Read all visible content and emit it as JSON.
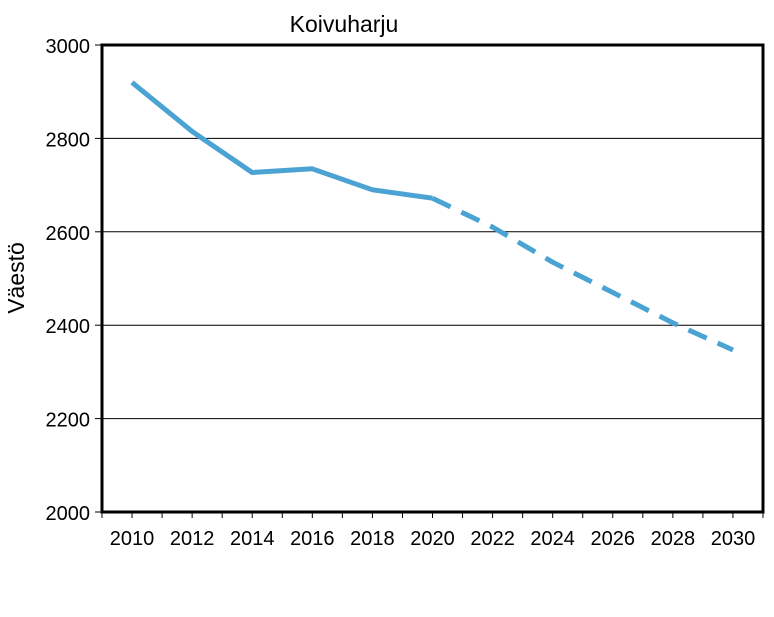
{
  "chart_data": {
    "type": "line",
    "title": "Koivuharju",
    "xlabel": "",
    "ylabel": "Väestö",
    "xlim": [
      2009,
      2031
    ],
    "ylim": [
      2000,
      3000
    ],
    "x_ticks": [
      2010,
      2012,
      2014,
      2016,
      2018,
      2020,
      2022,
      2024,
      2026,
      2028,
      2030
    ],
    "y_ticks": [
      2000,
      2200,
      2400,
      2600,
      2800,
      3000
    ],
    "grid": true,
    "legend": "none",
    "series": [
      {
        "style": "solid",
        "color": "#4BA3D3",
        "points": [
          {
            "x": 2010,
            "y": 2920
          },
          {
            "x": 2012,
            "y": 2815
          },
          {
            "x": 2014,
            "y": 2727
          },
          {
            "x": 2016,
            "y": 2735
          },
          {
            "x": 2018,
            "y": 2690
          },
          {
            "x": 2020,
            "y": 2672
          }
        ]
      },
      {
        "style": "dashed",
        "color": "#4BA3D3",
        "points": [
          {
            "x": 2020,
            "y": 2672
          },
          {
            "x": 2022,
            "y": 2610
          },
          {
            "x": 2024,
            "y": 2535
          },
          {
            "x": 2026,
            "y": 2470
          },
          {
            "x": 2028,
            "y": 2405
          },
          {
            "x": 2030,
            "y": 2347
          }
        ]
      }
    ]
  }
}
